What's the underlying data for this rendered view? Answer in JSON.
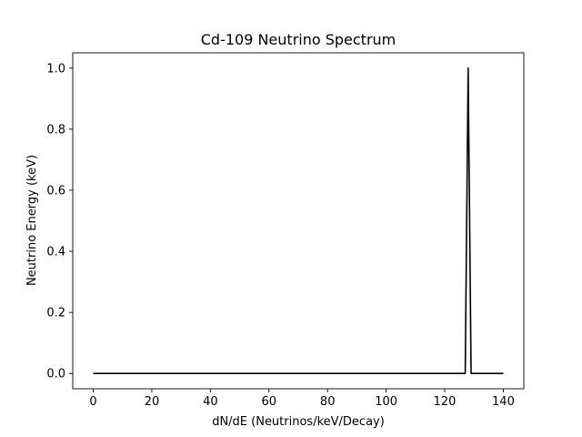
{
  "chart_data": {
    "type": "line",
    "title": "Cd-109 Neutrino Spectrum",
    "xlabel": "dN/dE (Neutrinos/keV/Decay)",
    "ylabel": "Neutrino Energy (keV)",
    "xlim": [
      -7,
      147
    ],
    "ylim": [
      -0.05,
      1.05
    ],
    "xticks": [
      0,
      20,
      40,
      60,
      80,
      100,
      120,
      140
    ],
    "yticks": [
      0.0,
      0.2,
      0.4,
      0.6,
      0.8,
      1.0
    ],
    "xtick_labels": [
      "0",
      "20",
      "40",
      "60",
      "80",
      "100",
      "120",
      "140"
    ],
    "ytick_labels": [
      "0.0",
      "0.2",
      "0.4",
      "0.6",
      "0.8",
      "1.0"
    ],
    "grid": false,
    "series": [
      {
        "color": "#000000",
        "x": [
          0,
          127,
          128,
          129,
          140
        ],
        "y": [
          0,
          0,
          1.0,
          0,
          0
        ]
      }
    ]
  }
}
